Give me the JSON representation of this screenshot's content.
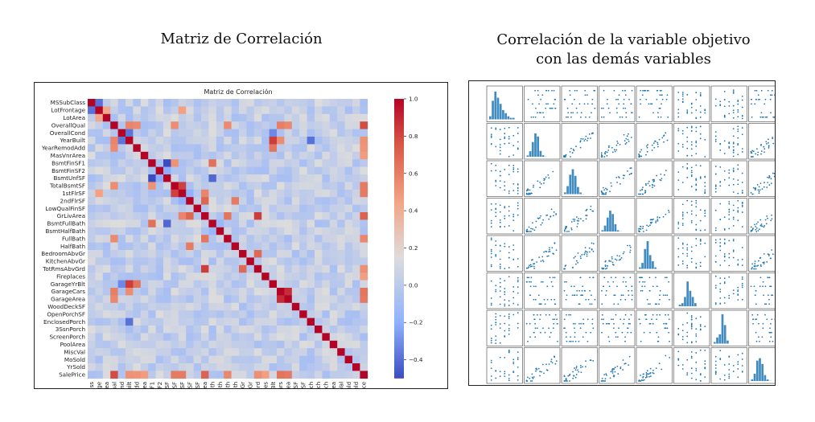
{
  "headings": {
    "left": "Matriz de Correlación",
    "right_line1": "Correlación de la variable objetivo",
    "right_line2": "con las demás variables"
  },
  "chart_data": [
    {
      "type": "heatmap",
      "title": "Matriz de Correlación",
      "variables": [
        "MSSubClass",
        "LotFrontage",
        "LotArea",
        "OverallQual",
        "OverallCond",
        "YearBuilt",
        "YearRemodAdd",
        "MasVnrArea",
        "BsmtFinSF1",
        "BsmtFinSF2",
        "BsmtUnfSF",
        "TotalBsmtSF",
        "1stFlrSF",
        "2ndFlrSF",
        "LowQualFinSF",
        "GrLivArea",
        "BsmtFullBath",
        "BsmtHalfBath",
        "FullBath",
        "HalfBath",
        "BedroomAbvGr",
        "KitchenAbvGr",
        "TotRmsAbvGrd",
        "Fireplaces",
        "GarageYrBlt",
        "GarageCars",
        "GarageArea",
        "WoodDeckSF",
        "OpenPorchSF",
        "EnclosedPorch",
        "3SsnPorch",
        "ScreenPorch",
        "PoolArea",
        "MiscVal",
        "MoSold",
        "YrSold",
        "SalePrice"
      ],
      "strong_pairs": [
        {
          "a": "GarageCars",
          "b": "GarageArea",
          "r": 0.88
        },
        {
          "a": "YearBuilt",
          "b": "GarageYrBlt",
          "r": 0.83
        },
        {
          "a": "TotalBsmtSF",
          "b": "1stFlrSF",
          "r": 0.82
        },
        {
          "a": "GrLivArea",
          "b": "TotRmsAbvGrd",
          "r": 0.83
        },
        {
          "a": "OverallQual",
          "b": "SalePrice",
          "r": 0.79
        },
        {
          "a": "GrLivArea",
          "b": "SalePrice",
          "r": 0.71
        },
        {
          "a": "2ndFlrSF",
          "b": "GrLivArea",
          "r": 0.69
        },
        {
          "a": "BedroomAbvGr",
          "b": "TotRmsAbvGrd",
          "r": 0.68
        },
        {
          "a": "BsmtFinSF1",
          "b": "BsmtFullBath",
          "r": 0.65
        },
        {
          "a": "GarageCars",
          "b": "SalePrice",
          "r": 0.64
        },
        {
          "a": "GarageArea",
          "b": "SalePrice",
          "r": 0.62
        },
        {
          "a": "TotalBsmtSF",
          "b": "SalePrice",
          "r": 0.61
        },
        {
          "a": "1stFlrSF",
          "b": "SalePrice",
          "r": 0.61
        },
        {
          "a": "YearRemodAdd",
          "b": "GarageYrBlt",
          "r": 0.64
        },
        {
          "a": "FullBath",
          "b": "GrLivArea",
          "r": 0.63
        },
        {
          "a": "HalfBath",
          "b": "2ndFlrSF",
          "r": 0.61
        },
        {
          "a": "OverallQual",
          "b": "GarageCars",
          "r": 0.6
        },
        {
          "a": "OverallQual",
          "b": "YearBuilt",
          "r": 0.57
        },
        {
          "a": "OverallQual",
          "b": "GarageArea",
          "r": 0.56
        },
        {
          "a": "OverallQual",
          "b": "FullBath",
          "r": 0.55
        },
        {
          "a": "OverallQual",
          "b": "YearRemodAdd",
          "r": 0.55
        },
        {
          "a": "OverallQual",
          "b": "TotalBsmtSF",
          "r": 0.54
        },
        {
          "a": "FullBath",
          "b": "SalePrice",
          "r": 0.56
        },
        {
          "a": "TotRmsAbvGrd",
          "b": "SalePrice",
          "r": 0.53
        },
        {
          "a": "YearBuilt",
          "b": "SalePrice",
          "r": 0.52
        },
        {
          "a": "YearRemodAdd",
          "b": "SalePrice",
          "r": 0.51
        },
        {
          "a": "YearBuilt",
          "b": "GarageCars",
          "r": 0.54
        },
        {
          "a": "1stFlrSF",
          "b": "GrLivArea",
          "r": 0.57
        },
        {
          "a": "TotalBsmtSF",
          "b": "BsmtFinSF1",
          "r": 0.52
        },
        {
          "a": "MasVnrArea",
          "b": "SalePrice",
          "r": 0.48
        },
        {
          "a": "Fireplaces",
          "b": "SalePrice",
          "r": 0.47
        },
        {
          "a": "LotFrontage",
          "b": "1stFlrSF",
          "r": 0.46
        },
        {
          "a": "LotFrontage",
          "b": "LotArea",
          "r": 0.43
        },
        {
          "a": "MSSubClass",
          "b": "LotFrontage",
          "r": -0.39
        },
        {
          "a": "BsmtFinSF1",
          "b": "BsmtUnfSF",
          "r": -0.5
        },
        {
          "a": "BsmtFullBath",
          "b": "BsmtUnfSF",
          "r": -0.42
        },
        {
          "a": "YearBuilt",
          "b": "EnclosedPorch",
          "r": -0.39
        },
        {
          "a": "OverallCond",
          "b": "YearBuilt",
          "r": -0.38
        },
        {
          "a": "OverallCond",
          "b": "GarageYrBlt",
          "r": -0.32
        },
        {
          "a": "2ndFlrSF",
          "b": "1stFlrSF",
          "r": -0.2
        },
        {
          "a": "BsmtFinSF2",
          "b": "BsmtUnfSF",
          "r": -0.21
        },
        {
          "a": "BsmtFullBath",
          "b": "BsmtHalfBath",
          "r": -0.15
        }
      ],
      "colorbar": {
        "min": -0.5,
        "max": 1.0,
        "ticks": [
          1.0,
          0.8,
          0.6,
          0.4,
          0.2,
          0.0,
          -0.2,
          -0.4
        ],
        "tick_labels": [
          "1.0",
          "0.8",
          "0.6",
          "0.4",
          "0.2",
          "0.0",
          "−0.2",
          "−0.4"
        ],
        "cmap": "coolwarm"
      },
      "colors": {
        "low": "#3b4cc0",
        "mid": "#dddddd",
        "high": "#b40426"
      }
    },
    {
      "type": "scatter",
      "layout": "pairplot",
      "grid_size": 8,
      "color": "#1f77b4",
      "diagonal": "histogram"
    }
  ]
}
